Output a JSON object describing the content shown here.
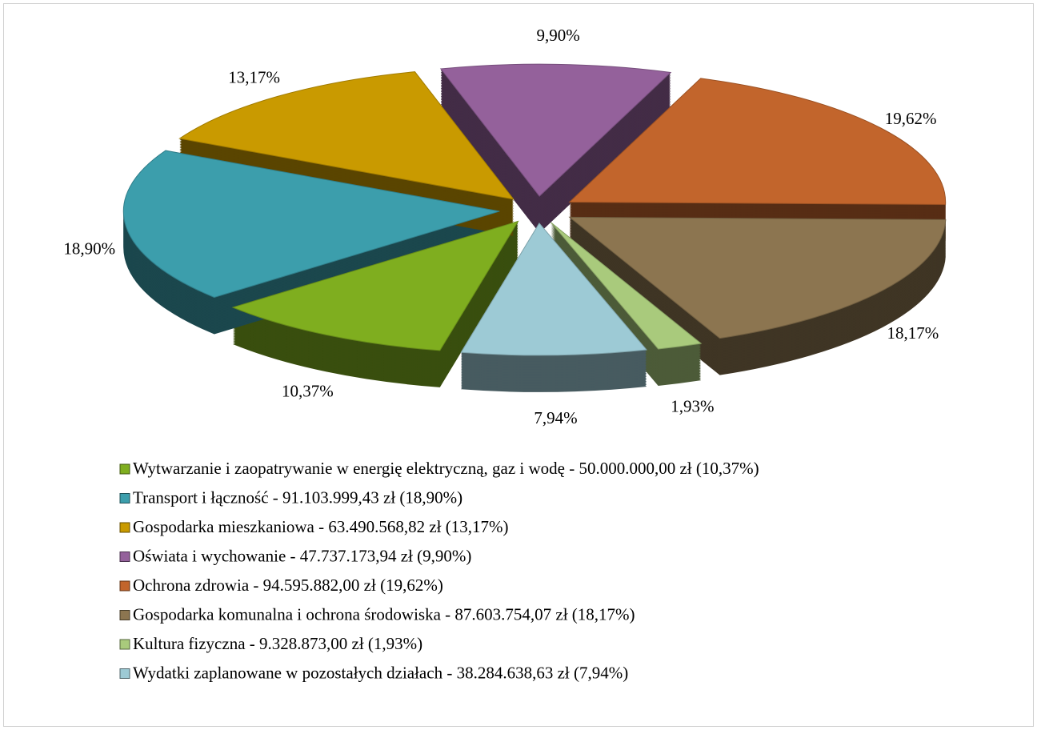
{
  "chart_data": {
    "type": "pie",
    "categories": [
      "Wytwarzanie i zaopatrywanie w energię elektryczną, gaz i wodę - 50.000.000,00 zł (10,37%)",
      "Transport i łączność - 91.103.999,43 zł (18,90%)",
      "Gospodarka mieszkaniowa - 63.490.568,82 zł (13,17%)",
      "Oświata i wychowanie - 47.737.173,94 zł (9,90%)",
      "Ochrona zdrowia - 94.595.882,00 zł (19,62%)",
      "Gospodarka komunalna i ochrona środowiska - 87.603.754,07 zł (18,17%)",
      "Kultura fizyczna - 9.328.873,00 zł (1,93%)",
      "Wydatki zaplanowane w pozostałych działach - 38.284.638,63 zł (7,94%)"
    ],
    "values": [
      10.37,
      18.9,
      13.17,
      9.9,
      19.62,
      18.17,
      1.93,
      7.94
    ],
    "value_labels": [
      "10,37%",
      "18,90%",
      "13,17%",
      "9,90%",
      "19,62%",
      "18,17%",
      "1,93%",
      "7,94%"
    ],
    "colors": [
      "#7fae1f",
      "#3c9eac",
      "#c99a00",
      "#94619b",
      "#c2652c",
      "#8c7550",
      "#a9ca7c",
      "#9dcad5"
    ],
    "legend": "bottom"
  }
}
